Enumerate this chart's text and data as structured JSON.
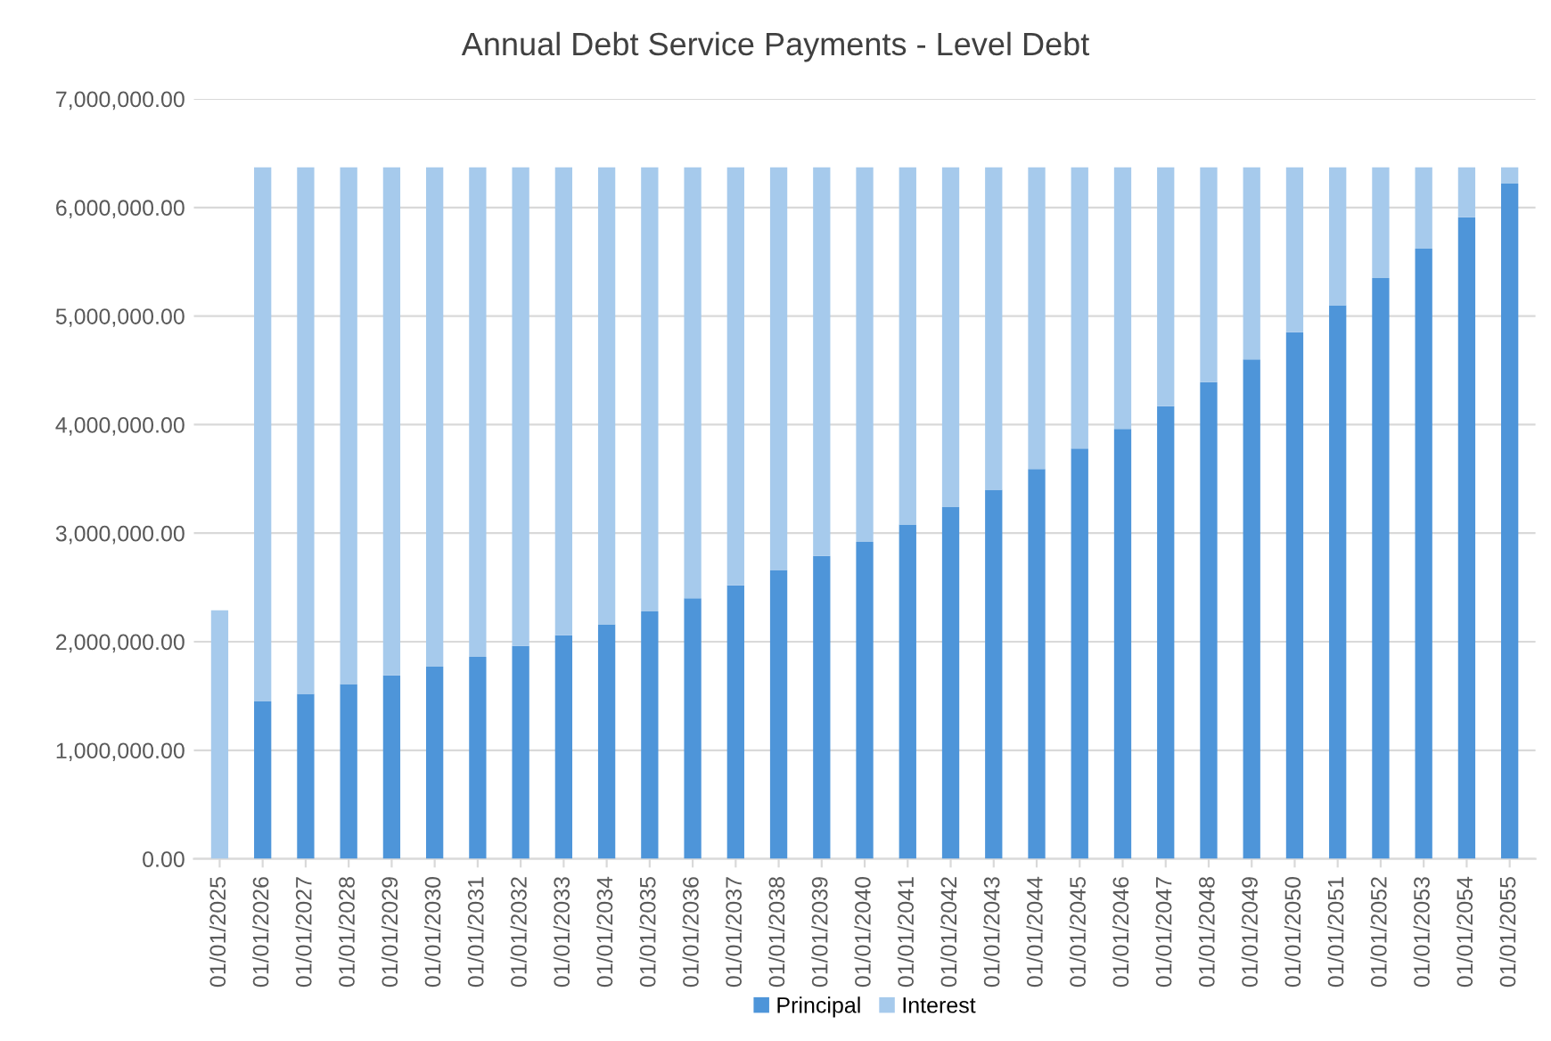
{
  "chart_data": {
    "type": "bar",
    "title": "Annual Debt Service Payments - Level Debt",
    "stacked": true,
    "grid": "y",
    "legend": "bottom",
    "categories": [
      "01/01/2025",
      "01/01/2026",
      "01/01/2027",
      "01/01/2028",
      "01/01/2029",
      "01/01/2030",
      "01/01/2031",
      "01/01/2032",
      "01/01/2033",
      "01/01/2034",
      "01/01/2035",
      "01/01/2036",
      "01/01/2037",
      "01/01/2038",
      "01/01/2039",
      "01/01/2040",
      "01/01/2041",
      "01/01/2042",
      "01/01/2043",
      "01/01/2044",
      "01/01/2045",
      "01/01/2046",
      "01/01/2047",
      "01/01/2048",
      "01/01/2049",
      "01/01/2050",
      "01/01/2051",
      "01/01/2052",
      "01/01/2053",
      "01/01/2054",
      "01/01/2055"
    ],
    "series": [
      {
        "name": "Principal",
        "color": "#4e95d9",
        "values": [
          0,
          1450000,
          1520000,
          1610000,
          1690000,
          1770000,
          1860000,
          1960000,
          2060000,
          2160000,
          2280000,
          2400000,
          2520000,
          2660000,
          2790000,
          2920000,
          3080000,
          3240000,
          3400000,
          3590000,
          3780000,
          3960000,
          4170000,
          4390000,
          4600000,
          4850000,
          5100000,
          5350000,
          5620000,
          5910000,
          6220000
        ]
      },
      {
        "name": "Interest",
        "color": "#a6caec",
        "values": [
          2290000,
          4920000,
          4850000,
          4760000,
          4680000,
          4600000,
          4510000,
          4410000,
          4310000,
          4210000,
          4090000,
          3970000,
          3850000,
          3710000,
          3580000,
          3450000,
          3290000,
          3130000,
          2970000,
          2780000,
          2590000,
          2410000,
          2200000,
          1980000,
          1770000,
          1520000,
          1270000,
          1020000,
          750000,
          460000,
          150000
        ]
      }
    ],
    "ylim": [
      0,
      7000000
    ],
    "yticks": [
      {
        "value": 0,
        "label": "0.00"
      },
      {
        "value": 1000000,
        "label": "1,000,000.00"
      },
      {
        "value": 2000000,
        "label": "2,000,000.00"
      },
      {
        "value": 3000000,
        "label": "3,000,000.00"
      },
      {
        "value": 4000000,
        "label": "4,000,000.00"
      },
      {
        "value": 5000000,
        "label": "5,000,000.00"
      },
      {
        "value": 6000000,
        "label": "6,000,000.00"
      },
      {
        "value": 7000000,
        "label": "7,000,000.00"
      }
    ]
  }
}
